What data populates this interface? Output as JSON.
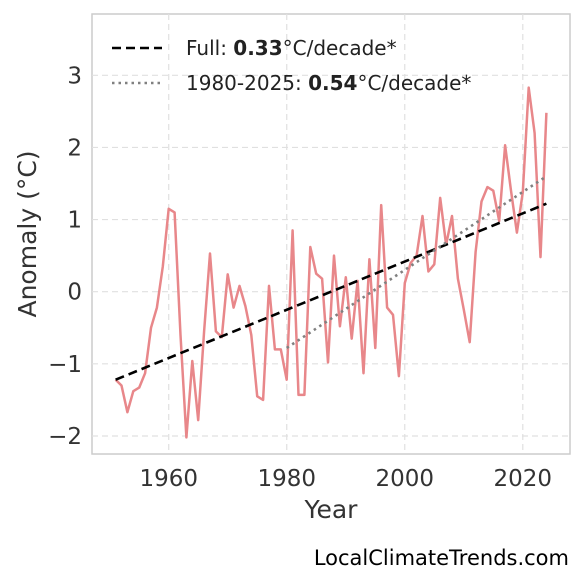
{
  "chart_data": {
    "type": "line",
    "xlabel": "Year",
    "ylabel": "Anomaly (°C)",
    "xlim": [
      1947,
      2028
    ],
    "ylim": [
      -2.25,
      3.85
    ],
    "xticks": [
      1960,
      1980,
      2000,
      2020
    ],
    "yticks": [
      -2,
      -1,
      0,
      1,
      2,
      3
    ],
    "grid": true,
    "legend_position": "top-left",
    "series": [
      {
        "color": "#e8878a",
        "x": [
          1951,
          1952,
          1953,
          1954,
          1955,
          1956,
          1957,
          1958,
          1959,
          1960,
          1961,
          1962,
          1963,
          1964,
          1965,
          1966,
          1967,
          1968,
          1969,
          1970,
          1971,
          1972,
          1973,
          1974,
          1975,
          1976,
          1977,
          1978,
          1979,
          1980,
          1981,
          1982,
          1983,
          1984,
          1985,
          1986,
          1987,
          1988,
          1989,
          1990,
          1991,
          1992,
          1993,
          1994,
          1995,
          1996,
          1997,
          1998,
          1999,
          2000,
          2001,
          2002,
          2003,
          2004,
          2005,
          2006,
          2007,
          2008,
          2009,
          2010,
          2011,
          2012,
          2013,
          2014,
          2015,
          2016,
          2017,
          2018,
          2019,
          2020,
          2021,
          2022,
          2023,
          2024
        ],
        "y": [
          -1.22,
          -1.3,
          -1.67,
          -1.38,
          -1.33,
          -1.13,
          -0.5,
          -0.22,
          0.35,
          1.15,
          1.1,
          -0.6,
          -2.02,
          -0.96,
          -1.78,
          -0.55,
          0.53,
          -0.55,
          -0.63,
          0.24,
          -0.22,
          0.08,
          -0.2,
          -0.6,
          -1.45,
          -1.5,
          0.08,
          -0.8,
          -0.8,
          -1.22,
          0.85,
          -1.43,
          -1.43,
          0.62,
          0.25,
          0.18,
          -0.98,
          0.5,
          -0.48,
          0.2,
          -0.65,
          0.15,
          -1.13,
          0.45,
          -0.78,
          1.2,
          -0.22,
          -0.32,
          -1.17,
          0.12,
          0.4,
          0.5,
          1.05,
          0.28,
          0.38,
          1.3,
          0.65,
          1.05,
          0.18,
          -0.25,
          -0.7,
          0.55,
          1.25,
          1.45,
          1.4,
          0.98,
          2.03,
          1.4,
          0.82,
          1.38,
          2.83,
          2.2,
          0.48,
          2.48
        ]
      }
    ],
    "trend_lines": [
      {
        "name": "Full",
        "rate": "0.33",
        "unit": "°C/decade*",
        "style": "dashed",
        "color": "#000000",
        "x": [
          1951,
          2024
        ],
        "y": [
          -1.22,
          1.22
        ]
      },
      {
        "name": "1980-2025",
        "rate": "0.54",
        "unit": "°C/decade*",
        "style": "dotted",
        "color": "#808080",
        "x": [
          1980,
          2024
        ],
        "y": [
          -0.78,
          1.6
        ]
      }
    ]
  },
  "watermark": "LocalClimateTrends.com"
}
